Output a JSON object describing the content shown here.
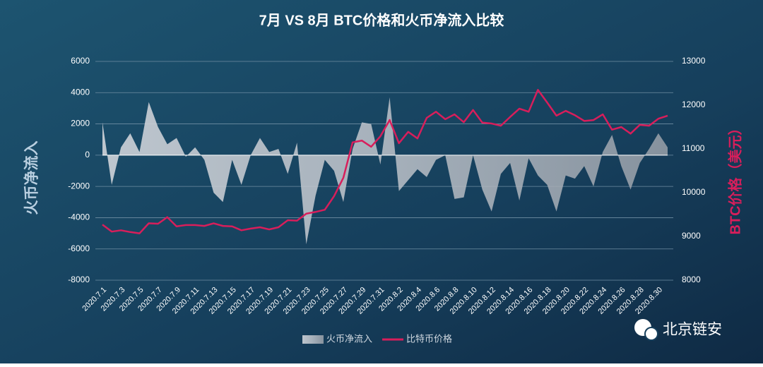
{
  "chart_data": {
    "type": "area-line",
    "title": "7月 VS 8月 BTC价格和火币净流入比较",
    "y_label": "火币净流入",
    "y2_label": "BTC价格（美元）",
    "watermark": "北京链安",
    "legend": "bottom",
    "grid": true,
    "categories": [
      "2020.7.1",
      null,
      "2020.7.3",
      null,
      "2020.7.5",
      null,
      "2020.7.7",
      null,
      "2020.7.9",
      null,
      "2020.7.11",
      null,
      "2020.7.13",
      null,
      "2020.7.15",
      null,
      "2020.7.17",
      null,
      "2020.7.19",
      null,
      "2020.7.21",
      null,
      "2020.7.23",
      null,
      "2020.7.25",
      null,
      "2020.7.27",
      null,
      "2020.7.29",
      null,
      "2020.7.31",
      null,
      "2020.8.2",
      null,
      "2020.8.4",
      null,
      "2020.8.6",
      null,
      "2020.8.8",
      null,
      "2020.8.10",
      null,
      "2020.8.12",
      null,
      "2020.8.14",
      null,
      "2020.8.16",
      null,
      "2020.8.18",
      null,
      "2020.8.20",
      null,
      "2020.8.22",
      null,
      "2020.8.24",
      null,
      "2020.8.26",
      null,
      "2020.8.28",
      null,
      "2020.8.30",
      null
    ],
    "ylim": [
      -8000,
      6000
    ],
    "yticks": [
      -8000,
      -6000,
      -4000,
      -2000,
      0,
      2000,
      4000,
      6000
    ],
    "y2lim": [
      8000,
      13000
    ],
    "y2ticks": [
      8000,
      9000,
      10000,
      11000,
      12000,
      13000
    ],
    "series": [
      {
        "name": "火币净流入",
        "type": "area",
        "color": "#c3c8cf",
        "values": [
          2100,
          -1900,
          500,
          1400,
          200,
          3400,
          1800,
          700,
          1100,
          -100,
          500,
          -300,
          -2400,
          -3000,
          -300,
          -1900,
          0,
          1100,
          200,
          400,
          -1200,
          800,
          -5700,
          -2600,
          -300,
          -1000,
          -3000,
          400,
          2100,
          2000,
          -600,
          3700,
          -2300,
          -1600,
          -900,
          -1400,
          -300,
          0,
          -2800,
          -2700,
          0,
          -2200,
          -3600,
          -1200,
          -500,
          -2900,
          -200,
          -1300,
          -1900,
          -3600,
          -1300,
          -1500,
          -700,
          -2000,
          200,
          1300,
          -700,
          -2200,
          -500,
          400,
          1400,
          500
        ]
      },
      {
        "name": "比特币价格",
        "type": "line",
        "axis": "y2",
        "color": "#d81e5b",
        "values": [
          9270,
          9110,
          9140,
          9100,
          9070,
          9300,
          9290,
          9440,
          9230,
          9260,
          9260,
          9240,
          9300,
          9240,
          9230,
          9140,
          9180,
          9210,
          9160,
          9210,
          9370,
          9360,
          9520,
          9560,
          9610,
          9920,
          10340,
          11150,
          11190,
          11050,
          11290,
          11660,
          11130,
          11390,
          11240,
          11710,
          11850,
          11680,
          11790,
          11610,
          11890,
          11600,
          11580,
          11530,
          11730,
          11920,
          11850,
          12350,
          12060,
          11760,
          11870,
          11770,
          11640,
          11660,
          11790,
          11440,
          11500,
          11350,
          11550,
          11530,
          11690,
          11760
        ]
      }
    ]
  }
}
